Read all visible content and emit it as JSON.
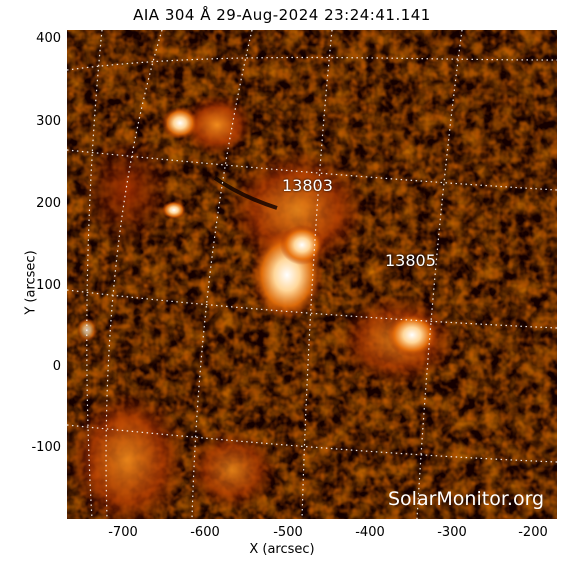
{
  "title": "AIA 304 Å 29-Aug-2024 23:24:41.141",
  "axes": {
    "xlabel": "X (arcsec)",
    "ylabel": "Y (arcsec)",
    "xticks": [
      "-700",
      "-600",
      "-500",
      "-400",
      "-300",
      "-200"
    ],
    "yticks": [
      "400",
      "300",
      "200",
      "100",
      "0",
      "-100"
    ]
  },
  "regions": [
    {
      "id": "13803"
    },
    {
      "id": "13805"
    }
  ],
  "watermark": "SolarMonitor.org",
  "colors": {
    "background": "#150000",
    "bright": "#ffffff",
    "mid": "#e8700a",
    "dark": "#5a0c00"
  }
}
